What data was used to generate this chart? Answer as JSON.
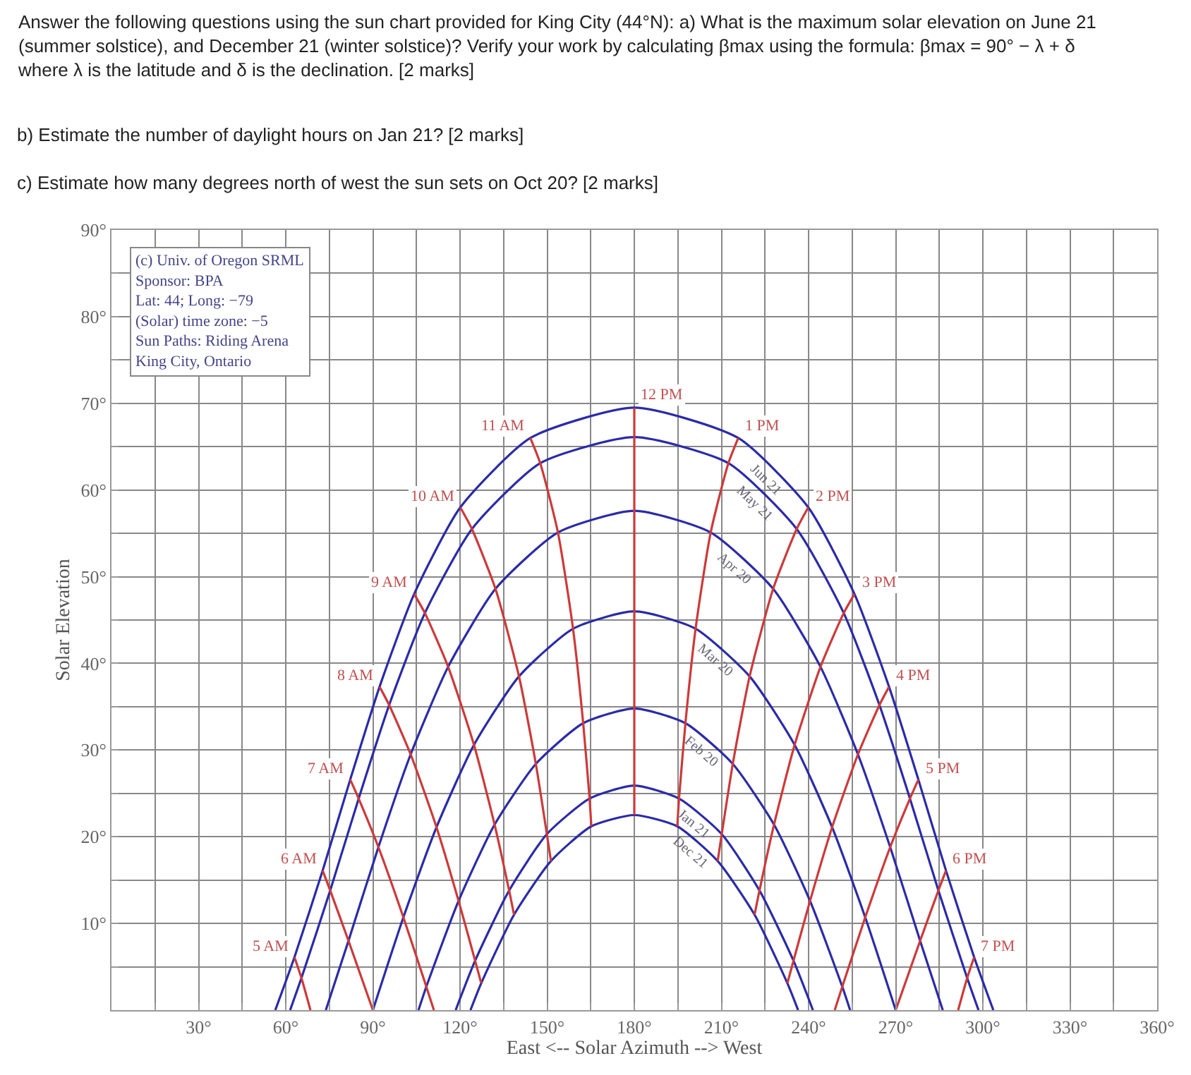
{
  "chart_data": {
    "type": "line",
    "title": "Answer the following questions using the sun chart provided for King City (44°N): a) What is the maximum solar elevation on June 21 (summer solstice), and December 21 (winter solstice)? Verify your work by calculating βmax using the formula: βmax = 90° − λ + δ where λ is the latitude and δ is the declination. [2 marks]",
    "annotations": [
      "b) Estimate the number of daylight hours on Jan 21? [2 marks]",
      "c) Estimate how many degrees north of west the sun sets on Oct 20? [2 marks]",
      "(c) Univ. of Oregon SRML\nSponsor: BPA\nLat: 44; Long: −79\n(Solar) time zone: −5\nSun Paths: Riding Arena\nKing City, Ontario"
    ],
    "xlabel": "East <-- Solar Azimuth --> West",
    "ylabel": "Solar Elevation",
    "xlim": [
      0,
      360
    ],
    "ylim": [
      0,
      90
    ],
    "xticks": [
      {
        "value": 15,
        "label": null
      },
      {
        "value": 30,
        "label": "30°"
      },
      {
        "value": 45,
        "label": null
      },
      {
        "value": 60,
        "label": "60°"
      },
      {
        "value": 75,
        "label": null
      },
      {
        "value": 90,
        "label": "90°"
      },
      {
        "value": 105,
        "label": null
      },
      {
        "value": 120,
        "label": "120°"
      },
      {
        "value": 135,
        "label": null
      },
      {
        "value": 150,
        "label": "150°"
      },
      {
        "value": 165,
        "label": null
      },
      {
        "value": 180,
        "label": "180°"
      },
      {
        "value": 195,
        "label": null
      },
      {
        "value": 210,
        "label": "210°"
      },
      {
        "value": 225,
        "label": null
      },
      {
        "value": 240,
        "label": "240°"
      },
      {
        "value": 255,
        "label": null
      },
      {
        "value": 270,
        "label": "270°"
      },
      {
        "value": 285,
        "label": null
      },
      {
        "value": 300,
        "label": "300°"
      },
      {
        "value": 315,
        "label": null
      },
      {
        "value": 330,
        "label": "330°"
      },
      {
        "value": 345,
        "label": null
      },
      {
        "value": 360,
        "label": "360°"
      }
    ],
    "yticks": [
      {
        "value": 5,
        "label": null
      },
      {
        "value": 10,
        "label": "10°"
      },
      {
        "value": 15,
        "label": null
      },
      {
        "value": 20,
        "label": "20°"
      },
      {
        "value": 25,
        "label": null
      },
      {
        "value": 30,
        "label": "30°"
      },
      {
        "value": 35,
        "label": null
      },
      {
        "value": 40,
        "label": "40°"
      },
      {
        "value": 45,
        "label": null
      },
      {
        "value": 50,
        "label": "50°"
      },
      {
        "value": 55,
        "label": null
      },
      {
        "value": 60,
        "label": "60°"
      },
      {
        "value": 65,
        "label": null
      },
      {
        "value": 70,
        "label": "70°"
      },
      {
        "value": 75,
        "label": null
      },
      {
        "value": 80,
        "label": "80°"
      },
      {
        "value": 85,
        "label": null
      },
      {
        "value": 90,
        "label": "90°"
      }
    ],
    "grid": true,
    "legend": false,
    "marker": "none",
    "line_style": "solid",
    "series": [
      {
        "name": "Jun 21",
        "color": "#2b2ba8",
        "x": [
          56.4,
          63.0,
          72.7,
          82.2,
          92.3,
          104.2,
          120.1,
          144.2,
          180,
          215.8,
          239.9,
          255.8,
          267.7,
          277.8,
          287.3,
          297.0,
          303.6
        ],
        "values": [
          0,
          6.1,
          16.1,
          26.6,
          37.3,
          48.0,
          58.0,
          66.0,
          69.5,
          66.0,
          58.0,
          48.0,
          37.3,
          26.6,
          16.1,
          6.1,
          0
        ]
      },
      {
        "name": "May 21",
        "color": "#2b2ba8",
        "x": [
          61.5,
          65.4,
          75.3,
          85.1,
          95.6,
          107.9,
          124.1,
          147.6,
          180,
          212.4,
          235.9,
          252.1,
          264.4,
          274.9,
          284.7,
          294.6,
          298.5
        ],
        "values": [
          0,
          3.7,
          13.8,
          24.4,
          35.2,
          45.8,
          55.5,
          63.1,
          66.1,
          63.1,
          55.5,
          45.8,
          35.2,
          24.4,
          13.8,
          3.7,
          0
        ]
      },
      {
        "name": "Apr 20",
        "color": "#2b2ba8",
        "x": [
          73.8,
          81.6,
          91.9,
          103.0,
          115.9,
          132.2,
          153.7,
          180,
          206.3,
          227.8,
          244.1,
          257.0,
          268.1,
          278.4,
          286.2
        ],
        "values": [
          0,
          8.0,
          18.8,
          29.5,
          39.6,
          48.6,
          55.1,
          57.6,
          55.1,
          48.6,
          39.6,
          29.5,
          18.8,
          8.0,
          0
        ]
      },
      {
        "name": "Mar 20",
        "color": "#2b2ba8",
        "x": [
          90,
          100.5,
          111.9,
          124.8,
          140.3,
          158.9,
          180,
          201.1,
          219.7,
          235.2,
          248.1,
          259.5,
          270
        ],
        "values": [
          0,
          10.7,
          21.1,
          30.6,
          38.5,
          44.0,
          46.0,
          44.0,
          38.5,
          30.6,
          21.1,
          10.7,
          0
        ]
      },
      {
        "name": "Feb 20",
        "color": "#2b2ba8",
        "x": [
          105.7,
          108.4,
          119.5,
          131.9,
          146.1,
          162.4,
          180,
          197.6,
          213.9,
          228.1,
          240.5,
          251.6,
          254.3
        ],
        "values": [
          0,
          2.7,
          12.6,
          21.4,
          28.4,
          33.1,
          34.8,
          33.1,
          28.4,
          21.4,
          12.6,
          2.7,
          0
        ]
      },
      {
        "name": "Jan 21",
        "color": "#2b2ba8",
        "x": [
          118.5,
          125.2,
          136.9,
          149.9,
          164.6,
          180,
          195.4,
          210.1,
          223.1,
          234.8,
          241.5
        ],
        "values": [
          0,
          5.7,
          13.8,
          20.3,
          24.4,
          25.9,
          24.4,
          20.3,
          13.8,
          5.7,
          0
        ]
      },
      {
        "name": "Dec 21",
        "color": "#2b2ba8",
        "x": [
          123.6,
          127.3,
          138.6,
          151.3,
          165.2,
          180,
          194.8,
          208.7,
          221.4,
          232.7,
          236.4
        ],
        "values": [
          0,
          3.1,
          11.0,
          17.2,
          21.2,
          22.5,
          21.2,
          17.2,
          11.0,
          3.1,
          0
        ]
      },
      {
        "name": "5 AM",
        "color": "#cc3a3a",
        "x": [
          63.0,
          65.4,
          68.5
        ],
        "values": [
          6.1,
          3.7,
          0
        ]
      },
      {
        "name": "6 AM",
        "color": "#cc3a3a",
        "x": [
          72.7,
          75.3,
          81.6,
          90
        ],
        "values": [
          16.1,
          13.8,
          8.0,
          0
        ]
      },
      {
        "name": "7 AM",
        "color": "#cc3a3a",
        "x": [
          82.2,
          85.1,
          91.9,
          100.5,
          108.4,
          111
        ],
        "values": [
          26.6,
          24.4,
          18.8,
          10.7,
          2.7,
          0
        ]
      },
      {
        "name": "8 AM",
        "color": "#cc3a3a",
        "x": [
          92.3,
          95.6,
          103.0,
          111.9,
          119.5,
          125.2,
          127.3
        ],
        "values": [
          37.3,
          35.2,
          29.5,
          21.1,
          12.6,
          5.7,
          3.1
        ]
      },
      {
        "name": "9 AM",
        "color": "#cc3a3a",
        "x": [
          104.2,
          107.9,
          115.9,
          124.8,
          131.9,
          136.9,
          138.6
        ],
        "values": [
          48.0,
          45.8,
          39.6,
          30.6,
          21.4,
          13.8,
          11.0
        ]
      },
      {
        "name": "10 AM",
        "color": "#cc3a3a",
        "x": [
          120.1,
          124.1,
          132.2,
          140.3,
          146.1,
          149.9,
          151.3
        ],
        "values": [
          58.0,
          55.5,
          48.6,
          38.5,
          28.4,
          20.3,
          17.2
        ]
      },
      {
        "name": "11 AM",
        "color": "#cc3a3a",
        "x": [
          144.2,
          147.6,
          153.7,
          158.9,
          162.4,
          164.6,
          165.2
        ],
        "values": [
          66.0,
          63.1,
          55.1,
          44.0,
          33.1,
          24.4,
          21.2
        ]
      },
      {
        "name": "12 PM",
        "color": "#cc3a3a",
        "x": [
          180,
          180,
          180,
          180,
          180,
          180,
          180
        ],
        "values": [
          69.5,
          66.1,
          57.6,
          46.0,
          34.8,
          25.9,
          22.5
        ]
      },
      {
        "name": "1 PM",
        "color": "#cc3a3a",
        "x": [
          215.8,
          212.4,
          206.3,
          201.1,
          197.6,
          195.4,
          194.8
        ],
        "values": [
          66.0,
          63.1,
          55.1,
          44.0,
          33.1,
          24.4,
          21.2
        ]
      },
      {
        "name": "2 PM",
        "color": "#cc3a3a",
        "x": [
          239.9,
          235.9,
          227.8,
          219.7,
          213.9,
          210.1,
          208.7
        ],
        "values": [
          58.0,
          55.5,
          48.6,
          38.5,
          28.4,
          20.3,
          17.2
        ]
      },
      {
        "name": "3 PM",
        "color": "#cc3a3a",
        "x": [
          255.8,
          252.1,
          244.1,
          235.2,
          228.1,
          223.1,
          221.4
        ],
        "values": [
          48.0,
          45.8,
          39.6,
          30.6,
          21.4,
          13.8,
          11.0
        ]
      },
      {
        "name": "4 PM",
        "color": "#cc3a3a",
        "x": [
          267.7,
          264.4,
          257.0,
          248.1,
          240.5,
          234.8,
          232.7
        ],
        "values": [
          37.3,
          35.2,
          29.5,
          21.1,
          12.6,
          5.7,
          3.1
        ]
      },
      {
        "name": "5 PM",
        "color": "#cc3a3a",
        "x": [
          277.8,
          274.9,
          268.1,
          259.5,
          251.6,
          249
        ],
        "values": [
          26.6,
          24.4,
          18.8,
          10.7,
          2.7,
          0
        ]
      },
      {
        "name": "6 PM",
        "color": "#cc3a3a",
        "x": [
          287.3,
          284.7,
          278.4,
          270
        ],
        "values": [
          16.1,
          13.8,
          8.0,
          0
        ]
      },
      {
        "name": "7 PM",
        "color": "#cc3a3a",
        "x": [
          297.0,
          294.6,
          291.5
        ],
        "values": [
          6.1,
          3.7,
          0
        ]
      }
    ]
  }
}
